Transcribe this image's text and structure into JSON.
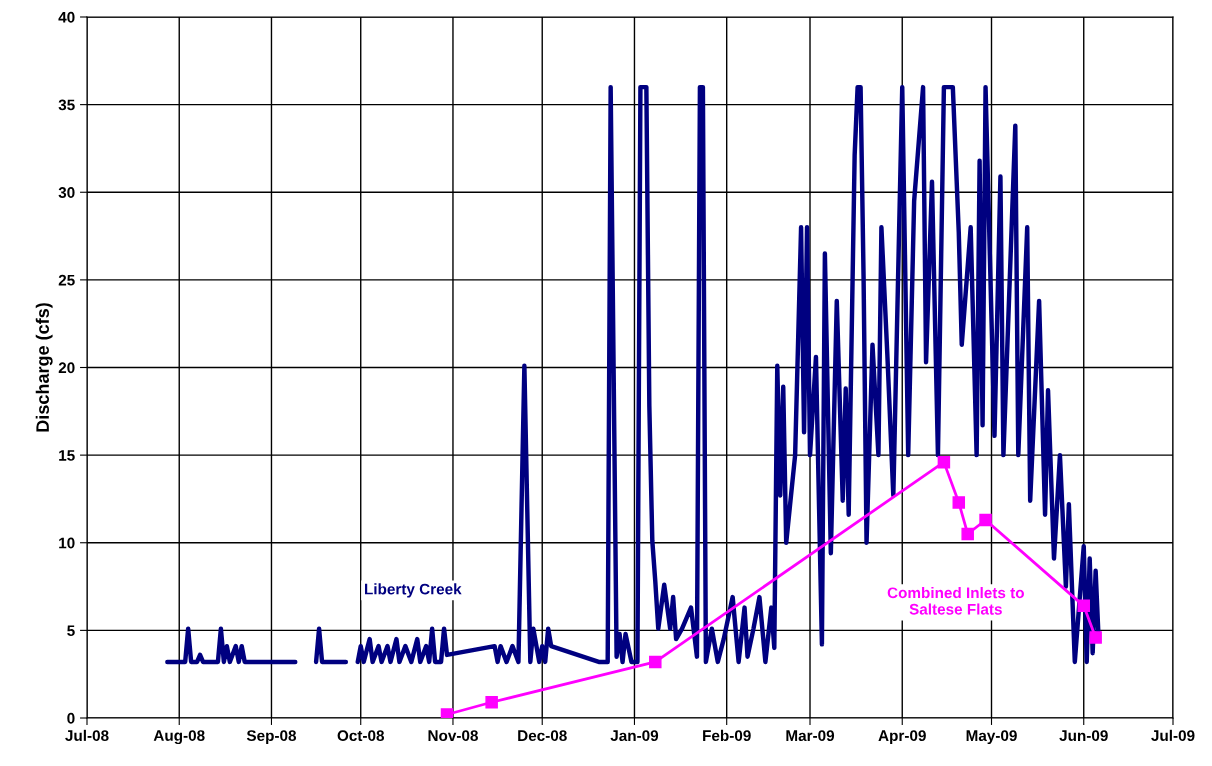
{
  "chart_data": {
    "type": "line",
    "ylabel": "Discharge (cfs)",
    "xlim": [
      "2008-07-01",
      "2009-07-01"
    ],
    "xticks": [
      {
        "value": "2008-07-01",
        "label": "Jul-08"
      },
      {
        "value": "2008-08-01",
        "label": "Aug-08"
      },
      {
        "value": "2008-09-01",
        "label": "Sep-08"
      },
      {
        "value": "2008-10-01",
        "label": "Oct-08"
      },
      {
        "value": "2008-11-01",
        "label": "Nov-08"
      },
      {
        "value": "2008-12-01",
        "label": "Dec-08"
      },
      {
        "value": "2009-01-01",
        "label": "Jan-09"
      },
      {
        "value": "2009-02-01",
        "label": "Feb-09"
      },
      {
        "value": "2009-03-01",
        "label": "Mar-09"
      },
      {
        "value": "2009-04-01",
        "label": "Apr-09"
      },
      {
        "value": "2009-05-01",
        "label": "May-09"
      },
      {
        "value": "2009-06-01",
        "label": "Jun-09"
      },
      {
        "value": "2009-07-01",
        "label": "Jul-09"
      }
    ],
    "ylim": [
      0,
      40
    ],
    "yticks": [
      0,
      5,
      10,
      15,
      20,
      25,
      30,
      35,
      40
    ],
    "grid": true,
    "legend": false,
    "series": [
      {
        "name": "Liberty Creek",
        "color": "#000080",
        "marker": "none",
        "line_style": "solid",
        "x": [
          "2008-07-28",
          "2008-08-01",
          "2008-08-03",
          "2008-08-04",
          "2008-08-05",
          "2008-08-07",
          "2008-08-08",
          "2008-08-09",
          "2008-08-14",
          "2008-08-15",
          "2008-08-16",
          "2008-08-17",
          "2008-08-18",
          "2008-08-20",
          "2008-08-21",
          "2008-08-22",
          "2008-08-23",
          "2008-09-09",
          "2008-09-12",
          "2008-09-16",
          "2008-09-17",
          "2008-09-18",
          "2008-09-26",
          "2008-09-28",
          "2008-09-30",
          "2008-10-01",
          "2008-10-02",
          "2008-10-04",
          "2008-10-05",
          "2008-10-07",
          "2008-10-08",
          "2008-10-10",
          "2008-10-11",
          "2008-10-13",
          "2008-10-14",
          "2008-10-16",
          "2008-10-18",
          "2008-10-20",
          "2008-10-21",
          "2008-10-23",
          "2008-10-24",
          "2008-10-25",
          "2008-10-26",
          "2008-10-28",
          "2008-10-29",
          "2008-10-30",
          "2008-11-15",
          "2008-11-16",
          "2008-11-17",
          "2008-11-19",
          "2008-11-21",
          "2008-11-23",
          "2008-11-25",
          "2008-11-27",
          "2008-11-28",
          "2008-11-30",
          "2008-12-01",
          "2008-12-02",
          "2008-12-03",
          "2008-12-04",
          "2008-12-20",
          "2008-12-23",
          "2008-12-24",
          "2008-12-26",
          "2008-12-27",
          "2008-12-28",
          "2008-12-29",
          "2008-12-31",
          "2009-01-02",
          "2009-01-03",
          "2009-01-05",
          "2009-01-06",
          "2009-01-07",
          "2009-01-08",
          "2009-01-09",
          "2009-01-11",
          "2009-01-13",
          "2009-01-14",
          "2009-01-15",
          "2009-01-17",
          "2009-01-20",
          "2009-01-22",
          "2009-01-23",
          "2009-01-24",
          "2009-01-25",
          "2009-01-27",
          "2009-01-29",
          "2009-01-31",
          "2009-02-03",
          "2009-02-05",
          "2009-02-07",
          "2009-02-08",
          "2009-02-10",
          "2009-02-12",
          "2009-02-14",
          "2009-02-16",
          "2009-02-17",
          "2009-02-18",
          "2009-02-19",
          "2009-02-20",
          "2009-02-21",
          "2009-02-24",
          "2009-02-26",
          "2009-02-27",
          "2009-02-28",
          "2009-03-01",
          "2009-03-03",
          "2009-03-05",
          "2009-03-06",
          "2009-03-08",
          "2009-03-10",
          "2009-03-12",
          "2009-03-13",
          "2009-03-14",
          "2009-03-16",
          "2009-03-17",
          "2009-03-18",
          "2009-03-19",
          "2009-03-20",
          "2009-03-22",
          "2009-03-24",
          "2009-03-25",
          "2009-03-27",
          "2009-03-29",
          "2009-04-01",
          "2009-04-03",
          "2009-04-05",
          "2009-04-08",
          "2009-04-09",
          "2009-04-11",
          "2009-04-13",
          "2009-04-15",
          "2009-04-18",
          "2009-04-20",
          "2009-04-21",
          "2009-04-24",
          "2009-04-26",
          "2009-04-27",
          "2009-04-28",
          "2009-04-29",
          "2009-05-02",
          "2009-05-04",
          "2009-05-05",
          "2009-05-09",
          "2009-05-10",
          "2009-05-13",
          "2009-05-14",
          "2009-05-17",
          "2009-05-19",
          "2009-05-20",
          "2009-05-22",
          "2009-05-24",
          "2009-05-26",
          "2009-05-27",
          "2009-05-29",
          "2009-06-01",
          "2009-06-02",
          "2009-06-03",
          "2009-06-04",
          "2009-06-05",
          "2009-06-06"
        ],
        "values": [
          3.2,
          3.2,
          3.2,
          5.1,
          3.2,
          3.2,
          3.6,
          3.2,
          3.2,
          5.1,
          3.2,
          4.1,
          3.2,
          4.1,
          3.2,
          4.1,
          3.2,
          3.2,
          null,
          3.2,
          5.1,
          3.2,
          3.2,
          null,
          3.2,
          4.1,
          3.2,
          4.5,
          3.2,
          4.1,
          3.2,
          4.1,
          3.2,
          4.5,
          3.2,
          4.1,
          3.2,
          4.5,
          3.2,
          4.1,
          3.2,
          5.1,
          3.2,
          3.2,
          5.1,
          3.6,
          4.1,
          3.2,
          4.1,
          3.2,
          4.1,
          3.2,
          20.1,
          3.2,
          5.1,
          3.2,
          4.1,
          3.2,
          5.1,
          4.1,
          3.2,
          3.2,
          36,
          3.5,
          4.8,
          3.2,
          4.8,
          3.2,
          3.2,
          36,
          36,
          17.8,
          10.1,
          7.8,
          5.1,
          7.6,
          5.1,
          6.9,
          4.5,
          5.1,
          6.3,
          3.5,
          36,
          36,
          3.2,
          5.1,
          3.2,
          4.5,
          6.9,
          3.2,
          6.3,
          3.5,
          5.1,
          6.9,
          3.2,
          6.3,
          4.0,
          20.1,
          12.7,
          18.9,
          10.0,
          15,
          28,
          16.3,
          28,
          15,
          20.6,
          4.2,
          26.5,
          9.4,
          23.8,
          12.4,
          18.8,
          11.6,
          32.1,
          36,
          36,
          25.2,
          10,
          21.3,
          15,
          28,
          20.7,
          12.7,
          36,
          15,
          29.5,
          36,
          20.3,
          30.6,
          15,
          36,
          36,
          27.7,
          21.3,
          28,
          15,
          31.8,
          16.7,
          36,
          16.1,
          30.9,
          15,
          33.8,
          15,
          28,
          12.4,
          23.8,
          11.6,
          18.7,
          9.1,
          15,
          7.5,
          12.2,
          3.2,
          9.8,
          3.2,
          9.1,
          3.7,
          8.4,
          4.5
        ]
      },
      {
        "name": "Combined Inlets to\nSaltese Flats",
        "color": "#ff00ff",
        "marker": "square",
        "line_style": "solid",
        "x": [
          "2008-10-30",
          "2008-11-14",
          "2009-01-08",
          "2009-04-15",
          "2009-04-20",
          "2009-04-23",
          "2009-04-29",
          "2009-06-01",
          "2009-06-05"
        ],
        "values": [
          0.2,
          0.9,
          3.2,
          14.6,
          12.3,
          10.5,
          11.3,
          6.4,
          4.6
        ]
      }
    ]
  }
}
